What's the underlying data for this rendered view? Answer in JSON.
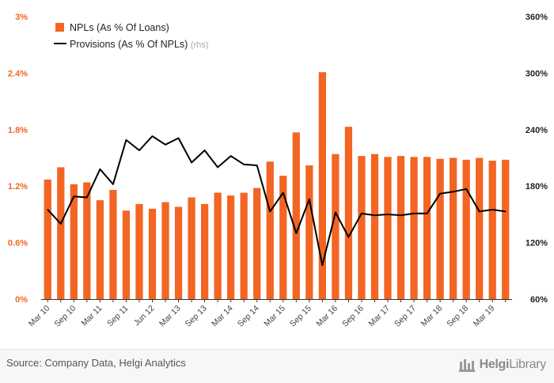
{
  "chart_data": {
    "type": "bar",
    "categories": [
      "Mar 10",
      "",
      "Sep 10",
      "",
      "Mar 11",
      "",
      "Sep 11",
      "",
      "Jun 12",
      "",
      "Mar 13",
      "",
      "Sep 13",
      "",
      "Mar 14",
      "",
      "Sep 14",
      "",
      "Mar 15",
      "",
      "Sep 15",
      "",
      "Mar 16",
      "",
      "Sep 16",
      "",
      "Mar 17",
      "",
      "Sep 17",
      "",
      "Mar 18",
      "",
      "Sep 18",
      "",
      "Mar 19",
      ""
    ],
    "series": [
      {
        "name": "NPLs (As % Of Loans)",
        "axis": "left",
        "type": "bar",
        "color": "#f26522",
        "values": [
          1.27,
          1.4,
          1.22,
          1.24,
          1.05,
          1.16,
          0.94,
          1.01,
          0.96,
          1.03,
          0.98,
          1.08,
          1.01,
          1.13,
          1.1,
          1.13,
          1.18,
          1.46,
          1.31,
          1.77,
          1.42,
          2.41,
          1.54,
          1.83,
          1.52,
          1.54,
          1.51,
          1.52,
          1.51,
          1.51,
          1.49,
          1.5,
          1.48,
          1.5,
          1.47,
          1.48
        ]
      },
      {
        "name": "Provisions (As % Of NPLs)",
        "axis": "right",
        "type": "line",
        "color": "#000000",
        "values": [
          155,
          140,
          169,
          168,
          198,
          182,
          229,
          218,
          233,
          224,
          231,
          205,
          218,
          200,
          212,
          203,
          202,
          153,
          173,
          130,
          166,
          96,
          152,
          126,
          151,
          149,
          150,
          149,
          151,
          151,
          172,
          174,
          177,
          153,
          155,
          153
        ]
      }
    ],
    "y_left": {
      "ticks": [
        "0%",
        "0.6%",
        "1.2%",
        "1.8%",
        "2.4%",
        "3%"
      ],
      "min": 0,
      "max": 3
    },
    "y_right": {
      "ticks": [
        "60%",
        "120%",
        "180%",
        "240%",
        "300%",
        "360%"
      ],
      "min": 60,
      "max": 360
    },
    "legend": [
      {
        "label": "NPLs (As % Of Loans)",
        "note": ""
      },
      {
        "label": "Provisions (As % Of NPLs)",
        "note": "(rhs)"
      }
    ],
    "legend_placement": "top-left",
    "grid": false
  },
  "footer": {
    "source": "Source: Company Data, Helgi Analytics",
    "logo_bold": "Helgi",
    "logo_light": "Library"
  },
  "colors": {
    "bar": "#f26522",
    "line": "#000000",
    "left_axis_text": "#f26522"
  }
}
